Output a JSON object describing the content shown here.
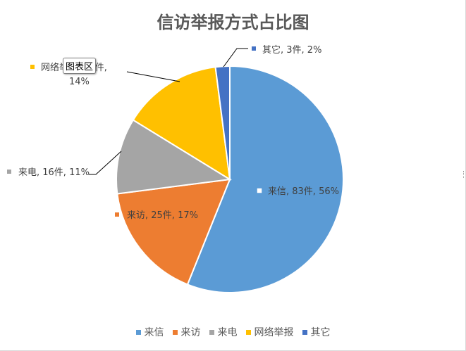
{
  "chart_data": {
    "type": "pie",
    "title": "信访举报方式占比图",
    "categories": [
      "来信",
      "来访",
      "来电",
      "网络举报",
      "其它"
    ],
    "values": [
      83,
      25,
      16,
      21,
      3
    ],
    "percents": [
      "56%",
      "17%",
      "11%",
      "14%",
      "2%"
    ],
    "data_labels": [
      "来信, 83件, 56%",
      "来访, 25件, 17%",
      "来电, 16件, 11%",
      "网络举报, 21件, 14%",
      "其它, 3件, 2%"
    ],
    "colors": [
      "#5B9BD5",
      "#ED7D31",
      "#A5A5A5",
      "#FFC000",
      "#4472C4"
    ],
    "legend_position": "bottom",
    "start_angle_deg": 0,
    "direction": "clockwise"
  },
  "tooltip": {
    "text": "图表区"
  }
}
